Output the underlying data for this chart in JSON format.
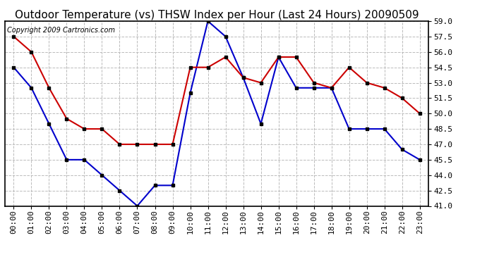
{
  "title": "Outdoor Temperature (vs) THSW Index per Hour (Last 24 Hours) 20090509",
  "copyright": "Copyright 2009 Cartronics.com",
  "hours": [
    "00:00",
    "01:00",
    "02:00",
    "03:00",
    "04:00",
    "05:00",
    "06:00",
    "07:00",
    "08:00",
    "09:00",
    "10:00",
    "11:00",
    "12:00",
    "13:00",
    "14:00",
    "15:00",
    "16:00",
    "17:00",
    "18:00",
    "19:00",
    "20:00",
    "21:00",
    "22:00",
    "23:00"
  ],
  "blue_data": [
    54.5,
    52.5,
    49.0,
    45.5,
    45.5,
    44.0,
    42.5,
    41.0,
    43.0,
    43.0,
    52.0,
    59.0,
    57.5,
    53.5,
    49.0,
    55.5,
    52.5,
    52.5,
    52.5,
    48.5,
    48.5,
    48.5,
    46.5,
    45.5
  ],
  "red_data": [
    57.5,
    56.0,
    52.5,
    49.5,
    48.5,
    48.5,
    47.0,
    47.0,
    47.0,
    47.0,
    54.5,
    54.5,
    55.5,
    53.5,
    53.0,
    55.5,
    55.5,
    53.0,
    52.5,
    54.5,
    53.0,
    52.5,
    51.5,
    50.0
  ],
  "blue_color": "#0000cc",
  "red_color": "#cc0000",
  "marker_color": "#000000",
  "bg_color": "#ffffff",
  "grid_color": "#bbbbbb",
  "title_color": "#000000",
  "ylim_min": 41.0,
  "ylim_max": 59.0,
  "ytick_step": 1.5,
  "title_fontsize": 11,
  "copyright_fontsize": 7,
  "axis_fontsize": 8
}
